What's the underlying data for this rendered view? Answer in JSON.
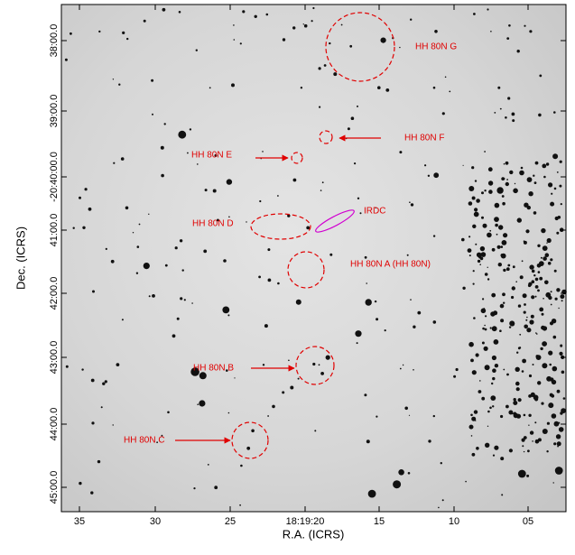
{
  "figure": {
    "x_label": "R.A. (ICRS)",
    "y_label": "Dec. (ICRS)",
    "x_ticks": [
      "35",
      "30",
      "25",
      "18:19:20",
      "15",
      "10",
      "05"
    ],
    "y_ticks": [
      "38:00.0",
      "39:00.0",
      "-20:40:00.0",
      "41:00.0",
      "42:00.0",
      "43:00.0",
      "44:00.0",
      "45:00.0"
    ],
    "annotations": [
      "HH 80N G",
      "HH 80N F",
      "HH 80N E",
      "HH 80N D",
      "IRDC",
      "HH 80N A  (HH 80N)",
      "HH 80N B",
      "HH 80N C"
    ]
  }
}
